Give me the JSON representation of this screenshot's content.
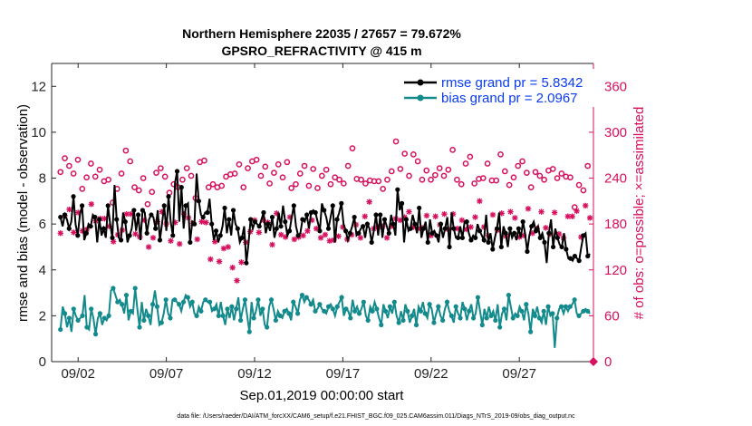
{
  "chart_data": {
    "type": "line",
    "title": "Northern Hemisphere 22035 / 27657 = 79.672%",
    "subtitle": "GPSRO_REFRACTIVITY @ 415 m",
    "xlabel": "Sep.01,2019 00:00:00 start",
    "ylabel": "rmse and bias (model - observation)",
    "ylabel_right": "# of obs: o=possible; ×=assimilated",
    "xlim": [
      0.5,
      31.2
    ],
    "ylim": [
      0,
      13
    ],
    "ylim_right": [
      0,
      390
    ],
    "x_ticks": [
      {
        "value": 2,
        "label": "09/02"
      },
      {
        "value": 7,
        "label": "09/07"
      },
      {
        "value": 12,
        "label": "09/12"
      },
      {
        "value": 17,
        "label": "09/17"
      },
      {
        "value": 22,
        "label": "09/22"
      },
      {
        "value": 27,
        "label": "09/27"
      }
    ],
    "y_ticks": [
      {
        "value": 0,
        "label": "0"
      },
      {
        "value": 2,
        "label": "2"
      },
      {
        "value": 4,
        "label": "4"
      },
      {
        "value": 6,
        "label": "6"
      },
      {
        "value": 8,
        "label": "8"
      },
      {
        "value": 10,
        "label": "10"
      },
      {
        "value": 12,
        "label": "12"
      }
    ],
    "y_ticks_right": [
      {
        "value": 0,
        "label": "0"
      },
      {
        "value": 60,
        "label": "60"
      },
      {
        "value": 120,
        "label": "120"
      },
      {
        "value": 180,
        "label": "180"
      },
      {
        "value": 240,
        "label": "240"
      },
      {
        "value": 300,
        "label": "300"
      },
      {
        "value": 360,
        "label": "360"
      }
    ],
    "legend_position": "top-right",
    "series": [
      {
        "name": "rmse grand pr = 5.8342",
        "color": "#000000",
        "marker": "filled-circle",
        "axis": "left",
        "values": [
          6.3,
          5.9,
          6.4,
          6.2,
          5.8,
          6.1,
          7.2,
          6.0,
          5.5,
          6.4,
          6.8,
          5.3,
          5.6,
          6.0,
          5.9,
          6.4,
          6.3,
          5.2,
          6.2,
          5.5,
          5.8,
          5.4,
          6.8,
          6.0,
          5.4,
          7.7,
          6.2,
          5.4,
          5.3,
          6.5,
          6.1,
          5.2,
          5.5,
          5.8,
          6.6,
          5.7,
          6.4,
          5.3,
          6.6,
          6.5,
          5.6,
          6.2,
          6.4,
          6.3,
          5.8,
          6.6,
          5.3,
          6.0,
          6.8,
          5.7,
          7.2,
          6.1,
          5.5,
          7.8,
          8.3,
          6.1,
          7.6,
          5.8,
          6.8,
          6.9,
          5.2,
          6.1,
          6.0,
          8.2,
          7.0,
          6.4,
          6.3,
          6.5,
          6.5,
          7.1,
          6.0,
          5.3,
          5.7,
          5.2,
          5.5,
          5.9,
          6.7,
          5.6,
          6.2,
          5.5,
          6.6,
          6.0,
          5.8,
          5.2,
          5.4,
          5.9,
          4.3,
          5.1,
          6.2,
          5.8,
          6.1,
          6.0,
          5.9,
          6.2,
          6.5,
          5.6,
          6.0,
          5.7,
          6.3,
          5.4,
          5.8,
          6.5,
          5.9,
          6.8,
          6.1,
          5.5,
          5.7,
          6.3,
          6.8,
          5.9,
          5.5,
          5.6,
          6.2,
          6.1,
          6.4,
          5.8,
          6.5,
          6.6,
          6.5,
          6.1,
          5.7,
          6.9,
          6.6,
          6.3,
          5.8,
          6.3,
          6.8,
          5.2,
          6.2,
          6.5,
          6.9,
          6.0,
          5.7,
          5.3,
          5.6,
          5.9,
          6.3,
          5.5,
          5.6,
          5.8,
          5.9,
          5.4,
          6.0,
          5.8,
          5.2,
          5.7,
          6.4,
          5.5,
          6.4,
          5.4,
          6.2,
          5.9,
          5.6,
          6.4,
          6.0,
          5.5,
          7.5,
          6.6,
          6.9,
          5.2,
          6.2,
          5.7,
          5.8,
          6.4,
          6.0,
          5.6,
          6.7,
          5.4,
          5.8,
          6.1,
          5.2,
          6.2,
          5.6,
          5.7,
          5.5,
          5.2,
          6.0,
          5.4,
          5.8,
          6.3,
          5.0,
          6.5,
          5.8,
          5.4,
          5.4,
          5.9,
          5.4,
          6.1,
          6.1,
          5.6,
          5.3,
          5.5,
          5.4,
          6.0,
          5.7,
          5.5,
          5.3,
          6.4,
          5.2,
          5.6,
          4.9,
          5.4,
          5.8,
          6.5,
          5.0,
          5.9,
          5.6,
          5.0,
          5.8,
          5.4,
          5.6,
          5.3,
          5.8,
          5.4,
          6.1,
          5.6,
          4.8,
          5.5,
          5.9,
          6.1,
          5.7,
          5.9,
          5.4,
          5.6,
          5.2,
          4.3,
          5.6,
          6.2,
          5.0,
          5.8,
          5.4,
          5.1,
          5.0,
          5.6,
          4.9,
          4.5,
          4.5,
          4.4,
          4.6,
          4.5,
          4.4,
          5.0,
          5.5,
          5.6,
          4.6,
          4.7
        ]
      },
      {
        "name": "bias grand pr = 2.0967",
        "color": "#138a8c",
        "marker": "filled-circle",
        "axis": "left",
        "values": [
          1.4,
          2.4,
          2.1,
          1.5,
          1.9,
          1.3,
          2.3,
          2.0,
          1.8,
          1.9,
          2.0,
          2.9,
          1.5,
          1.4,
          2.3,
          1.9,
          1.2,
          1.9,
          2.1,
          1.6,
          1.9,
          1.8,
          2.0,
          3.1,
          3.2,
          2.9,
          2.6,
          2.7,
          2.5,
          2.1,
          2.9,
          1.8,
          2.2,
          2.1,
          3.2,
          2.3,
          1.5,
          2.6,
          1.8,
          2.3,
          2.0,
          1.6,
          2.5,
          3.1,
          2.4,
          1.6,
          1.7,
          2.1,
          2.7,
          2.1,
          1.9,
          2.7,
          2.7,
          2.6,
          2.5,
          2.2,
          2.6,
          2.9,
          2.8,
          2.4,
          2.6,
          2.1,
          2.0,
          2.4,
          2.2,
          2.6,
          2.7,
          2.6,
          2.6,
          2.2,
          2.3,
          2.5,
          2.0,
          2.6,
          2.0,
          1.6,
          2.3,
          1.9,
          2.4,
          1.8,
          2.3,
          2.8,
          1.8,
          2.3,
          2.7,
          2.0,
          1.3,
          2.6,
          1.9,
          2.2,
          2.7,
          2.0,
          2.3,
          1.6,
          1.5,
          2.4,
          2.7,
          2.3,
          1.8,
          2.2,
          2.0,
          1.9,
          2.2,
          2.3,
          2.1,
          1.8,
          2.6,
          2.4,
          2.1,
          2.7,
          2.9,
          2.6,
          2.8,
          2.7,
          2.5,
          2.7,
          2.2,
          2.3,
          2.5,
          2.3,
          2.2,
          2.1,
          2.4,
          2.5,
          2.3,
          2.0,
          2.4,
          2.6,
          2.8,
          2.0,
          2.3,
          2.2,
          1.9,
          2.7,
          2.2,
          2.4,
          2.1,
          2.3,
          2.6,
          2.0,
          1.8,
          2.4,
          2.2,
          2.6,
          2.3,
          1.9,
          1.6,
          2.5,
          2.2,
          1.9,
          2.4,
          2.1,
          2.6,
          2.0,
          1.7,
          2.2,
          1.8,
          2.5,
          2.2,
          1.7,
          2.0,
          2.3,
          1.6,
          2.4,
          2.2,
          2.6,
          2.1,
          1.9,
          2.5,
          2.3,
          1.7,
          2.1,
          2.4,
          2.0,
          1.8,
          2.3,
          2.6,
          2.2,
          2.0,
          1.7,
          2.4,
          2.1,
          1.9,
          2.6,
          2.3,
          1.8,
          2.2,
          2.5,
          1.9,
          2.1,
          2.8,
          2.2,
          1.6,
          2.3,
          1.9,
          2.4,
          2.0,
          2.2,
          1.8,
          2.5,
          1.5,
          2.1,
          2.3,
          1.8,
          2.9,
          2.4,
          1.9,
          2.1,
          2.0,
          2.4,
          2.2,
          1.8,
          2.5,
          2.1,
          1.3,
          2.3,
          2.0,
          2.4,
          1.9,
          1.7,
          2.2,
          1.6,
          2.4,
          2.0,
          2.1,
          0.6,
          1.9,
          2.3,
          2.4,
          2.1,
          2.4,
          2.2,
          2.4,
          2.5,
          2.7,
          2.1,
          2.0,
          2.1,
          2.2,
          2.3,
          2.2,
          2.1
        ]
      },
      {
        "name": "possible",
        "color": "#d6105e",
        "marker": "open-circle",
        "axis": "right",
        "values": [
          248,
          257,
          266,
          275,
          256,
          237,
          246,
          273,
          264,
          248,
          226,
          228,
          241,
          250,
          259,
          231,
          242,
          247,
          251,
          226,
          236,
          249,
          238,
          226,
          208,
          244,
          226,
          240,
          246,
          270,
          276,
          246,
          262,
          215,
          228,
          218,
          224,
          226,
          240,
          221,
          206,
          244,
          222,
          261,
          247,
          232,
          253,
          240,
          242,
          258,
          221,
          252,
          232,
          240,
          228,
          256,
          238,
          244,
          253,
          246,
          243,
          232,
          214,
          245,
          261,
          240,
          263,
          246,
          228,
          214,
          232,
          243,
          228,
          241,
          230,
          250,
          242,
          262,
          245,
          232,
          246,
          237,
          258,
          250,
          228,
          242,
          253,
          268,
          262,
          278,
          264,
          252,
          243,
          233,
          255,
          262,
          233,
          222,
          247,
          231,
          258,
          250,
          241,
          247,
          261,
          233,
          227,
          245,
          232,
          254,
          246,
          238,
          256,
          244,
          230,
          249,
          252,
          241,
          227,
          258,
          243,
          228,
          251,
          238,
          232,
          258,
          241,
          244,
          238,
          249,
          233,
          242,
          256,
          262,
          279,
          248,
          239,
          250,
          238,
          245,
          233,
          258,
          237,
          257,
          236,
          252,
          236,
          243,
          226,
          253,
          238,
          283,
          249,
          265,
          288,
          240,
          252,
          263,
          272,
          281,
          243,
          249,
          271,
          243,
          262,
          247,
          238,
          265,
          250,
          233,
          238,
          259,
          244,
          235,
          253,
          240,
          243,
          228,
          251,
          262,
          277,
          256,
          238,
          242,
          232,
          245,
          259,
          252,
          268,
          245,
          233,
          257,
          239,
          250,
          240,
          244,
          259,
          248,
          237,
          222,
          237,
          248,
          271,
          226,
          249,
          237,
          231,
          258,
          241,
          230,
          256,
          244,
          262,
          238,
          247,
          233,
          228,
          237,
          248,
          257,
          243,
          253,
          238,
          264,
          250,
          244,
          252,
          232,
          240,
          244,
          246,
          240,
          242,
          218,
          241,
          219,
          202,
          209,
          231,
          243,
          224,
          247,
          256,
          239
        ]
      },
      {
        "name": "assimilated",
        "color": "#d6105e",
        "marker": "asterisk",
        "axis": "right",
        "values": [
          168,
          185,
          191,
          195,
          199,
          191,
          169,
          178,
          195,
          190,
          171,
          199,
          173,
          192,
          206,
          172,
          184,
          185,
          187,
          161,
          187,
          193,
          177,
          162,
          157,
          189,
          166,
          178,
          172,
          196,
          193,
          179,
          193,
          156,
          167,
          158,
          163,
          172,
          185,
          163,
          150,
          178,
          162,
          195,
          183,
          171,
          196,
          179,
          180,
          197,
          158,
          181,
          182,
          176,
          154,
          188,
          193,
          159,
          188,
          174,
          181,
          180,
          160,
          158,
          183,
          175,
          182,
          158,
          134,
          147,
          157,
          138,
          131,
          155,
          148,
          140,
          150,
          129,
          123,
          116,
          106,
          123,
          130,
          138,
          156,
          166,
          170,
          153,
          185,
          190,
          169,
          174,
          185,
          175,
          182,
          161,
          153,
          180,
          194,
          178,
          166,
          196,
          163,
          181,
          189,
          196,
          160,
          177,
          163,
          181,
          165,
          178,
          171,
          173,
          185,
          190,
          174,
          163,
          162,
          182,
          166,
          160,
          158,
          181,
          159,
          174,
          164,
          183,
          176,
          164,
          160,
          173,
          166,
          182,
          179,
          169,
          162,
          178,
          190,
          198,
          209,
          200,
          174,
          197,
          176,
          193,
          177,
          191,
          162,
          192,
          177,
          186,
          187,
          167,
          185,
          175,
          189,
          171,
          196,
          184,
          176,
          187,
          174,
          166,
          175,
          183,
          191,
          175,
          165,
          172,
          190,
          168,
          179,
          183,
          193,
          163,
          173,
          175,
          193,
          181,
          174,
          206,
          185,
          186,
          173,
          197,
          176,
          193,
          189,
          207,
          210,
          183,
          176,
          174,
          165,
          170,
          192,
          169,
          172,
          185,
          194,
          178,
          164,
          183,
          196,
          176,
          188,
          171,
          163,
          183,
          165,
          172,
          200,
          188,
          168,
          186,
          174,
          180,
          196,
          192,
          175,
          186,
          167,
          182,
          195,
          188,
          167,
          180,
          162,
          177,
          190,
          201,
          190,
          213,
          197,
          175,
          163,
          183,
          204,
          179,
          188
        ]
      }
    ],
    "legend": [
      {
        "label": "rmse grand pr = 5.8342",
        "color": "#000000"
      },
      {
        "label": "bias grand pr = 2.0967",
        "color": "#138a8c"
      }
    ],
    "footer": "data file: /Users/raeder/DAI/ATM_forcXX/CAM6_setup/f.e21.FHIST_BGC.f09_025.CAM6assim.011/Diags_NTrS_2019-09/obs_diag_output.nc",
    "colors": {
      "rmse": "#000000",
      "bias": "#138a8c",
      "obs": "#d6105e",
      "legend_text": "#0a3cf0"
    }
  }
}
